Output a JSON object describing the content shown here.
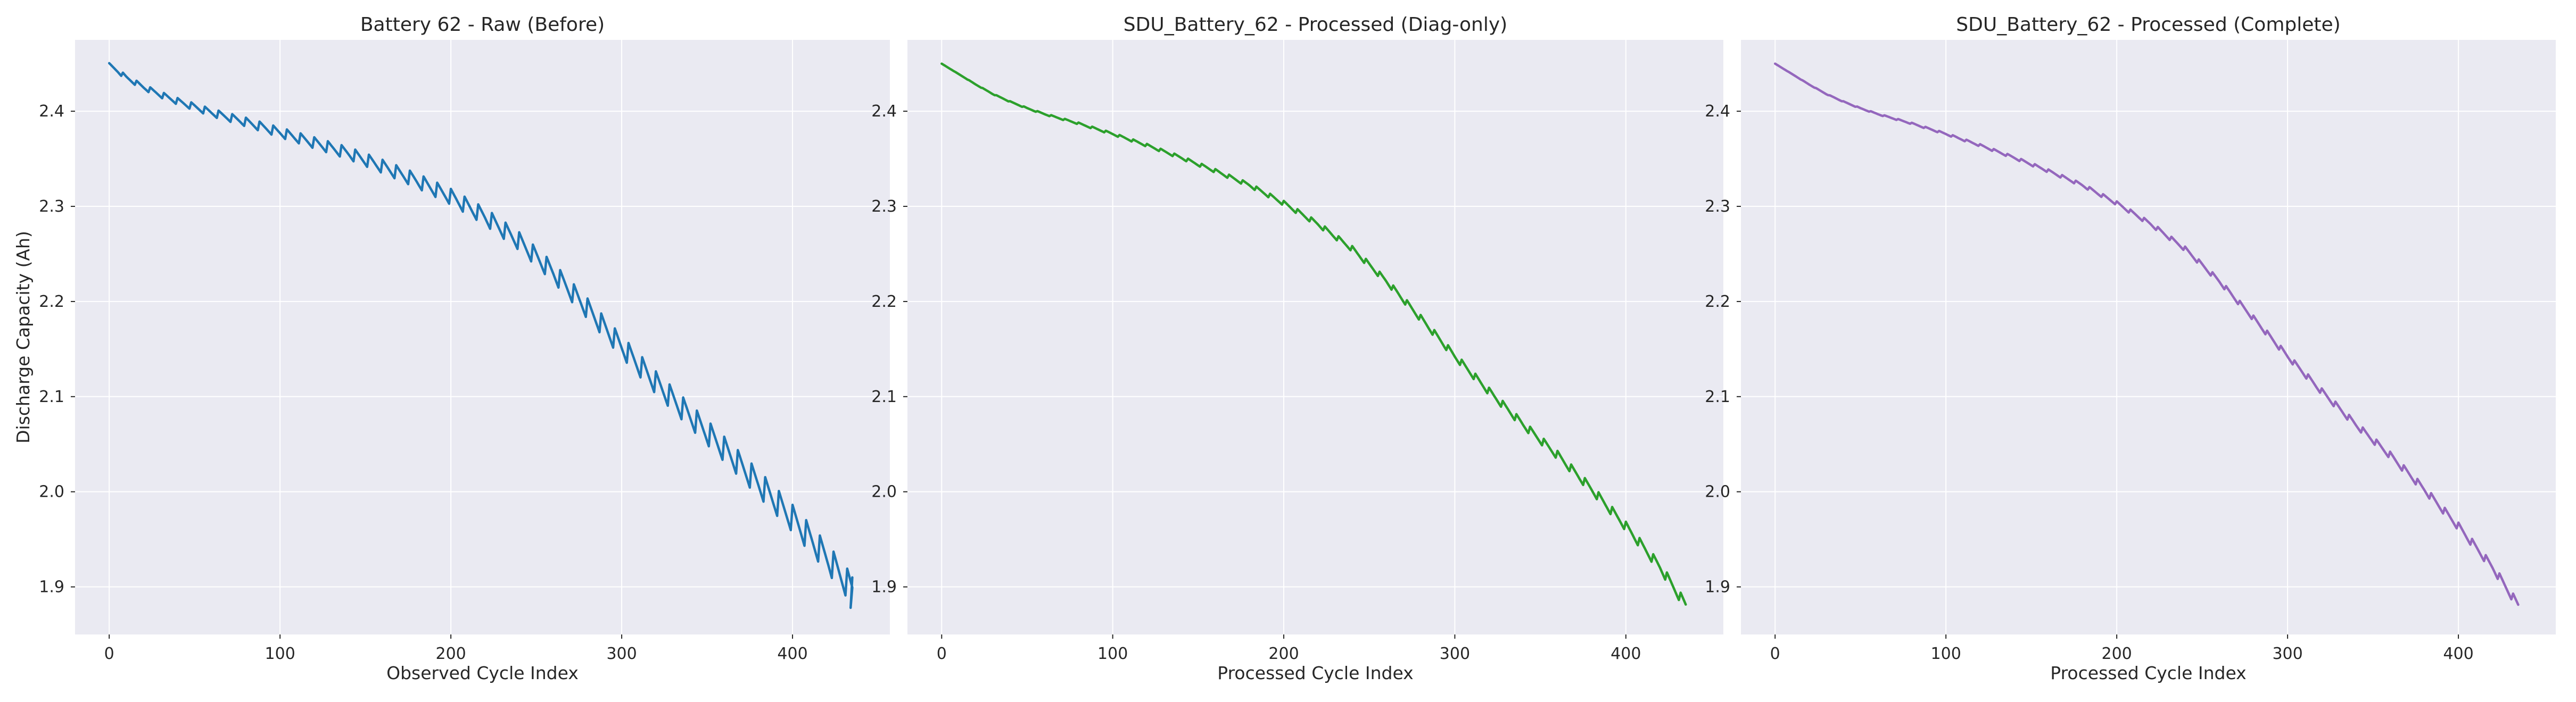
{
  "chart_data": [
    {
      "type": "line",
      "title": "Battery 62 - Raw (Before)",
      "xlabel": "Observed Cycle Index",
      "ylabel": "Discharge Capacity (Ah)",
      "xlim": [
        -20,
        457
      ],
      "ylim": [
        1.85,
        2.475
      ],
      "xticks": [
        0,
        100,
        200,
        300,
        400
      ],
      "yticks": [
        1.9,
        2.0,
        2.1,
        2.2,
        2.3,
        2.4
      ],
      "grid": true,
      "series": [
        {
          "color": "#1f77b4",
          "sawtooth": {
            "period": 8,
            "amp_start": 0.005,
            "amp_end": 0.035
          },
          "trend_x": [
            0,
            5,
            10,
            20,
            30,
            40,
            50,
            60,
            80,
            100,
            120,
            140,
            160,
            180,
            200,
            220,
            240,
            260,
            280,
            300,
            320,
            340,
            360,
            380,
            400,
            420,
            435
          ],
          "trend_y": [
            2.448,
            2.442,
            2.435,
            2.425,
            2.417,
            2.41,
            2.404,
            2.398,
            2.388,
            2.377,
            2.366,
            2.355,
            2.341,
            2.326,
            2.309,
            2.288,
            2.262,
            2.229,
            2.191,
            2.151,
            2.113,
            2.078,
            2.043,
            2.007,
            1.97,
            1.929,
            1.895
          ]
        }
      ]
    },
    {
      "type": "line",
      "title": "SDU_Battery_62 - Processed (Diag-only)",
      "xlabel": "Processed Cycle Index",
      "ylabel": "",
      "xlim": [
        -20,
        457
      ],
      "ylim": [
        1.85,
        2.475
      ],
      "xticks": [
        0,
        100,
        200,
        300,
        400
      ],
      "yticks": [
        1.9,
        2.0,
        2.1,
        2.2,
        2.3,
        2.4
      ],
      "grid": true,
      "series": [
        {
          "color": "#2ca02c",
          "sawtooth": {
            "period": 8,
            "amp_start": 0.0,
            "amp_end": 0.012
          },
          "trend_x": [
            0,
            10,
            20,
            30,
            40,
            50,
            60,
            80,
            100,
            120,
            140,
            160,
            180,
            200,
            220,
            240,
            260,
            280,
            300,
            320,
            340,
            360,
            380,
            400,
            420,
            435
          ],
          "trend_y": [
            2.45,
            2.439,
            2.428,
            2.418,
            2.41,
            2.403,
            2.397,
            2.387,
            2.376,
            2.364,
            2.351,
            2.337,
            2.322,
            2.303,
            2.281,
            2.255,
            2.221,
            2.182,
            2.142,
            2.105,
            2.07,
            2.038,
            2.002,
            1.963,
            1.92,
            1.88
          ]
        }
      ]
    },
    {
      "type": "line",
      "title": "SDU_Battery_62 - Processed (Complete)",
      "xlabel": "Processed Cycle Index",
      "ylabel": "",
      "xlim": [
        -20,
        457
      ],
      "ylim": [
        1.85,
        2.475
      ],
      "xticks": [
        0,
        100,
        200,
        300,
        400
      ],
      "yticks": [
        1.9,
        2.0,
        2.1,
        2.2,
        2.3,
        2.4
      ],
      "grid": true,
      "series": [
        {
          "color": "#9467bd",
          "sawtooth": {
            "period": 8,
            "amp_start": 0.0,
            "amp_end": 0.01
          },
          "trend_x": [
            0,
            10,
            20,
            30,
            40,
            50,
            60,
            80,
            100,
            120,
            140,
            160,
            180,
            200,
            220,
            240,
            260,
            280,
            300,
            320,
            340,
            360,
            380,
            400,
            420,
            435
          ],
          "trend_y": [
            2.45,
            2.439,
            2.428,
            2.418,
            2.41,
            2.403,
            2.397,
            2.387,
            2.376,
            2.364,
            2.351,
            2.337,
            2.322,
            2.303,
            2.281,
            2.255,
            2.221,
            2.182,
            2.142,
            2.105,
            2.07,
            2.038,
            2.002,
            1.963,
            1.92,
            1.88
          ]
        }
      ]
    }
  ]
}
